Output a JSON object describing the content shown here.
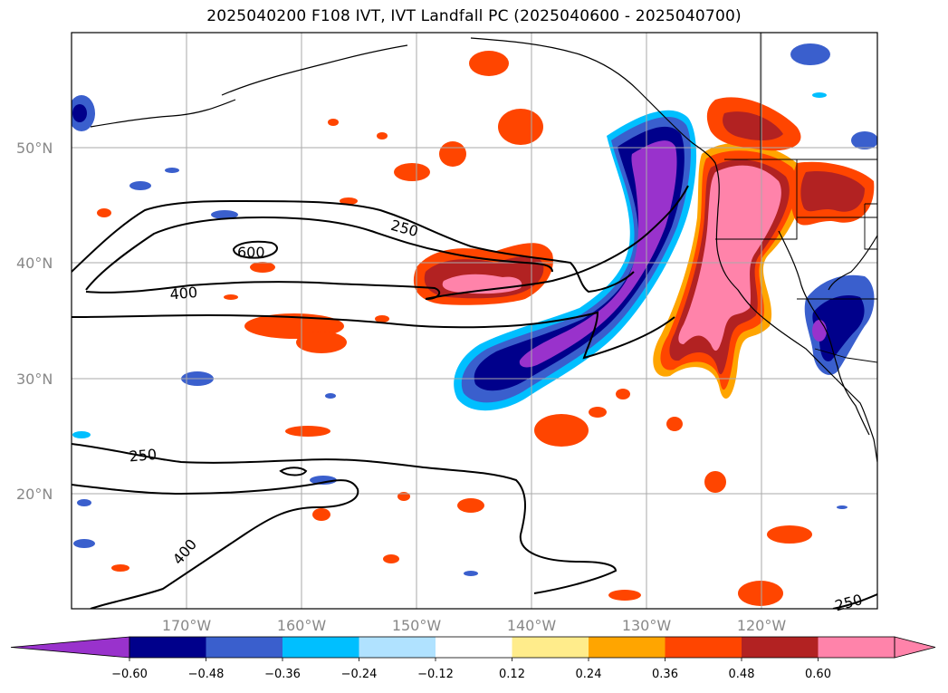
{
  "title": "2025040200 F108 IVT, IVT Landfall PC (2025040600 - 2025040700)",
  "map": {
    "lat_labels": [
      "50°N",
      "40°N",
      "30°N",
      "20°N"
    ],
    "lon_labels": [
      "170°W",
      "160°W",
      "150°W",
      "140°W",
      "130°W",
      "120°W"
    ],
    "contour_labels": [
      "250",
      "600",
      "400",
      "250",
      "400",
      "250"
    ]
  },
  "colorbar": {
    "ticks": [
      "−0.60",
      "−0.48",
      "−0.36",
      "−0.24",
      "−0.12",
      "0.12",
      "0.24",
      "0.36",
      "0.48",
      "0.60"
    ],
    "colors": [
      "#9932cc",
      "#00008b",
      "#3a5fcd",
      "#00bfff",
      "#b0e2ff",
      "#ffffff",
      "#ffec8b",
      "#ffa500",
      "#ff4500",
      "#b22222",
      "#ff83aa",
      "#ff83aa"
    ]
  },
  "colors": {
    "neg_strong": "#9932cc",
    "neg_navy": "#00008b",
    "neg_mid": "#3a5fcd",
    "neg_sky": "#00bfff",
    "neg_light": "#b0e2ff",
    "pos_yellow": "#ffec8b",
    "pos_orange": "#ffa500",
    "pos_redorange": "#ff4500",
    "pos_firebrick": "#b22222",
    "pos_pink": "#ff83aa",
    "grid": "#aaaaaa",
    "axis_label": "#888888"
  }
}
